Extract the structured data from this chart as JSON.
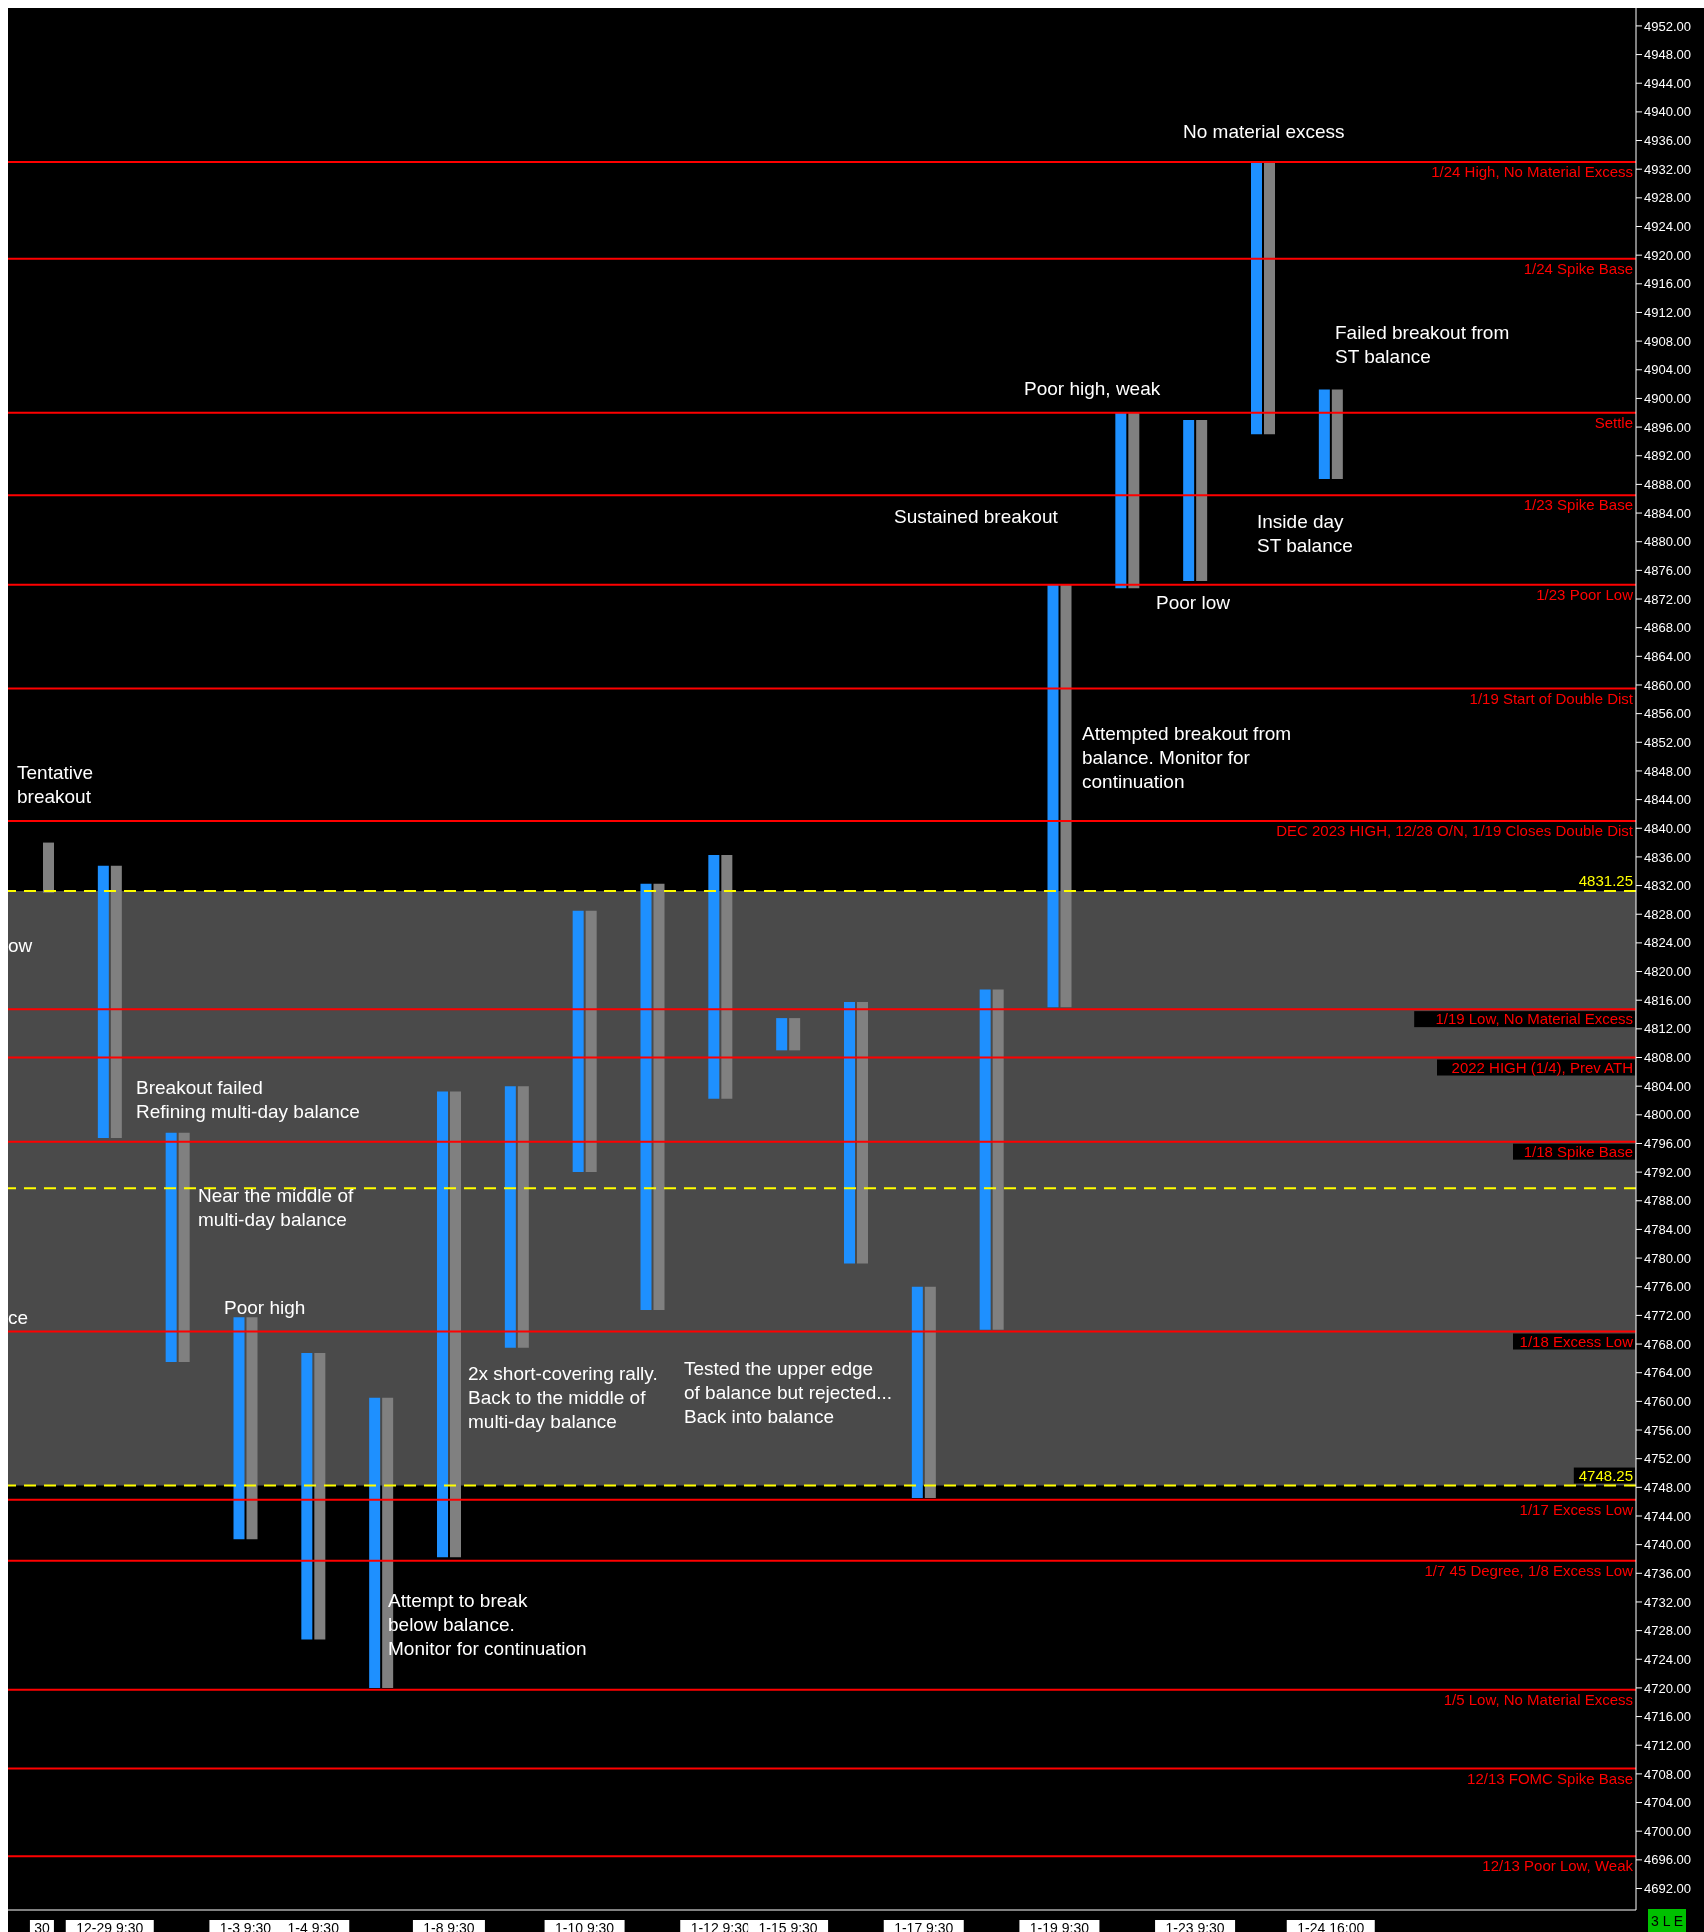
{
  "chart_data": {
    "type": "bar",
    "categories": [
      "30",
      "12-29 9:30",
      null,
      "1-3 9:30",
      "1-4 9:30",
      null,
      "1-8 9:30",
      null,
      "1-10 9:30",
      null,
      "1-12 9:30",
      "1-15 9:30",
      null,
      "1-17 9:30",
      null,
      "1-19 9:30",
      null,
      "1-23 9:30",
      null,
      "1-24 16:00",
      null,
      null,
      null,
      null
    ],
    "series": [
      {
        "color": "#1e90ff",
        "base": [
          null,
          4796.75,
          4765.5,
          4740.75,
          4726.75,
          4720,
          4738.25,
          4767.5,
          4792,
          4772.75,
          4802.25,
          4809,
          4779.25,
          4746.5,
          4770,
          4815,
          4873.5,
          4874.5,
          4895,
          4888.75,
          null,
          null,
          null,
          null
        ],
        "values": [
          null,
          38,
          32,
          31,
          40,
          40.5,
          65,
          36.5,
          36.5,
          59.5,
          34,
          4.5,
          36.5,
          29.5,
          47.5,
          59,
          24.5,
          22.5,
          38,
          12.5,
          null,
          null,
          null,
          null
        ]
      },
      {
        "color": "#808080",
        "base": [
          4831,
          4796.75,
          4765.5,
          4740.75,
          4726.75,
          4720,
          4738.25,
          4767.5,
          4792,
          4772.75,
          4802.25,
          4809,
          4779.25,
          4746.5,
          4770,
          4815,
          4873.5,
          4874.5,
          4895,
          4888.75,
          null,
          null,
          null,
          null
        ],
        "values": [
          7,
          38,
          32,
          31,
          40,
          40.5,
          65,
          36.5,
          36.5,
          59.5,
          34,
          4.5,
          36.5,
          29.5,
          47.5,
          59,
          24.5,
          22.5,
          38,
          12.5,
          null,
          null,
          null,
          null
        ]
      }
    ],
    "ylim": [
      4689,
      4954.5
    ],
    "yticks": [
      {
        "value": 4692,
        "label": "4692.00"
      },
      {
        "value": 4696,
        "label": "4696.00"
      },
      {
        "value": 4700,
        "label": "4700.00"
      },
      {
        "value": 4704,
        "label": "4704.00"
      },
      {
        "value": 4708,
        "label": "4708.00"
      },
      {
        "value": 4712,
        "label": "4712.00"
      },
      {
        "value": 4716,
        "label": "4716.00"
      },
      {
        "value": 4720,
        "label": "4720.00"
      },
      {
        "value": 4724,
        "label": "4724.00"
      },
      {
        "value": 4728,
        "label": "4728.00"
      },
      {
        "value": 4732,
        "label": "4732.00"
      },
      {
        "value": 4736,
        "label": "4736.00"
      },
      {
        "value": 4740,
        "label": "4740.00"
      },
      {
        "value": 4744,
        "label": "4744.00"
      },
      {
        "value": 4748,
        "label": "4748.00"
      },
      {
        "value": 4752,
        "label": "4752.00"
      },
      {
        "value": 4756,
        "label": "4756.00"
      },
      {
        "value": 4760,
        "label": "4760.00"
      },
      {
        "value": 4764,
        "label": "4764.00"
      },
      {
        "value": 4768,
        "label": "4768.00"
      },
      {
        "value": 4772,
        "label": "4772.00"
      },
      {
        "value": 4776,
        "label": "4776.00"
      },
      {
        "value": 4780,
        "label": "4780.00"
      },
      {
        "value": 4784,
        "label": "4784.00"
      },
      {
        "value": 4788,
        "label": "4788.00"
      },
      {
        "value": 4792,
        "label": "4792.00"
      },
      {
        "value": 4796,
        "label": "4796.00"
      },
      {
        "value": 4800,
        "label": "4800.00"
      },
      {
        "value": 4804,
        "label": "4804.00"
      },
      {
        "value": 4808,
        "label": "4808.00"
      },
      {
        "value": 4812,
        "label": "4812.00"
      },
      {
        "value": 4816,
        "label": "4816.00"
      },
      {
        "value": 4820,
        "label": "4820.00"
      },
      {
        "value": 4824,
        "label": "4824.00"
      },
      {
        "value": 4828,
        "label": "4828.00"
      },
      {
        "value": 4832,
        "label": "4832.00"
      },
      {
        "value": 4836,
        "label": "4836.00"
      },
      {
        "value": 4840,
        "label": "4840.00"
      },
      {
        "value": 4844,
        "label": "4844.00"
      },
      {
        "value": 4848,
        "label": "4848.00"
      },
      {
        "value": 4852,
        "label": "4852.00"
      },
      {
        "value": 4856,
        "label": "4856.00"
      },
      {
        "value": 4860,
        "label": "4860.00"
      },
      {
        "value": 4864,
        "label": "4864.00"
      },
      {
        "value": 4868,
        "label": "4868.00"
      },
      {
        "value": 4872,
        "label": "4872.00"
      },
      {
        "value": 4876,
        "label": "4876.00"
      },
      {
        "value": 4880,
        "label": "4880.00"
      },
      {
        "value": 4884,
        "label": "4884.00"
      },
      {
        "value": 4888,
        "label": "4888.00"
      },
      {
        "value": 4892,
        "label": "4892.00"
      },
      {
        "value": 4896,
        "label": "4896.00"
      },
      {
        "value": 4900,
        "label": "4900.00"
      },
      {
        "value": 4904,
        "label": "4904.00"
      },
      {
        "value": 4908,
        "label": "4908.00"
      },
      {
        "value": 4912,
        "label": "4912.00"
      },
      {
        "value": 4916,
        "label": "4916.00"
      },
      {
        "value": 4920,
        "label": "4920.00"
      },
      {
        "value": 4924,
        "label": "4924.00"
      },
      {
        "value": 4928,
        "label": "4928.00"
      },
      {
        "value": 4932,
        "label": "4932.00"
      },
      {
        "value": 4936,
        "label": "4936.00"
      },
      {
        "value": 4940,
        "label": "4940.00"
      },
      {
        "value": 4944,
        "label": "4944.00"
      },
      {
        "value": 4948,
        "label": "4948.00"
      },
      {
        "value": 4952,
        "label": "4952.00"
      }
    ],
    "bands": [
      {
        "axis": "y",
        "from": 4748.25,
        "to": 4831.25,
        "color": "#4a4a4a"
      }
    ],
    "ref_lines": [
      {
        "axis": "y",
        "value": 4933,
        "label": "1/24 High, No Material Excess",
        "color": "#ff0000"
      },
      {
        "axis": "y",
        "value": 4919.5,
        "label": "1/24 Spike Base",
        "color": "#ff0000"
      },
      {
        "axis": "y",
        "value": 4898,
        "label": "Settle",
        "color": "#ff0000"
      },
      {
        "axis": "y",
        "value": 4886.5,
        "label": "1/23 Spike Base",
        "color": "#ff0000"
      },
      {
        "axis": "y",
        "value": 4874,
        "label": "1/23 Poor Low",
        "color": "#ff0000"
      },
      {
        "axis": "y",
        "value": 4859.5,
        "label": "1/19 Start of Double Dist",
        "color": "#ff0000"
      },
      {
        "axis": "y",
        "value": 4841,
        "label": "DEC 2023 HIGH, 12/28 O/N, 1/19 Closes Double Dist",
        "color": "#ff0000"
      },
      {
        "axis": "y",
        "value": 4831.25,
        "label": "4831.25",
        "color": "#ffff00",
        "line_style": "dashed"
      },
      {
        "axis": "y",
        "value": 4814.75,
        "label": "1/19 Low, No Material Excess",
        "color": "#ff0000"
      },
      {
        "axis": "y",
        "value": 4808,
        "label": "2022 HIGH (1/4), Prev ATH",
        "color": "#ff0000"
      },
      {
        "axis": "y",
        "value": 4796.25,
        "label": "1/18 Spike Base",
        "color": "#ff0000"
      },
      {
        "axis": "y",
        "value": 4789.75,
        "color": "#ffff00",
        "line_style": "dashed"
      },
      {
        "axis": "y",
        "value": 4769.75,
        "label": "1/18 Excess Low",
        "color": "#ff0000"
      },
      {
        "axis": "y",
        "value": 4748.25,
        "label": "4748.25",
        "color": "#ffff00",
        "line_style": "dashed"
      },
      {
        "axis": "y",
        "value": 4746.25,
        "label": "1/17 Excess Low",
        "color": "#ff0000"
      },
      {
        "axis": "y",
        "value": 4737.75,
        "label": "1/7 45 Degree, 1/8 Excess Low",
        "color": "#ff0000"
      },
      {
        "axis": "y",
        "value": 4719.75,
        "label": "1/5 Low, No Material Excess",
        "color": "#ff0000"
      },
      {
        "axis": "y",
        "value": 4708.75,
        "label": "12/13 FOMC Spike Base",
        "color": "#ff0000"
      },
      {
        "axis": "y",
        "value": 4696.5,
        "label": "12/13 Poor Low, Weak",
        "color": "#ff0000"
      }
    ],
    "annotations": [
      "No material excess",
      "Failed breakout from\nST balance",
      "Poor high, weak",
      "Sustained breakout",
      "Inside day\nST balance",
      "Poor low",
      "Attempted breakout from\nbalance. Monitor for\ncontinuation",
      "Tentative\nbreakout",
      "ow",
      "Breakout failed\nRefining multi-day balance",
      "Near the middle of\nmulti-day balance",
      "Poor high",
      "ce",
      "2x short-covering rally.\nBack to the middle of\nmulti-day balance",
      "Tested the upper edge\nof balance but rejected...\nBack into balance",
      "Attempt to break\nbelow balance.\nMonitor for continuation",
      "3 L E"
    ]
  }
}
